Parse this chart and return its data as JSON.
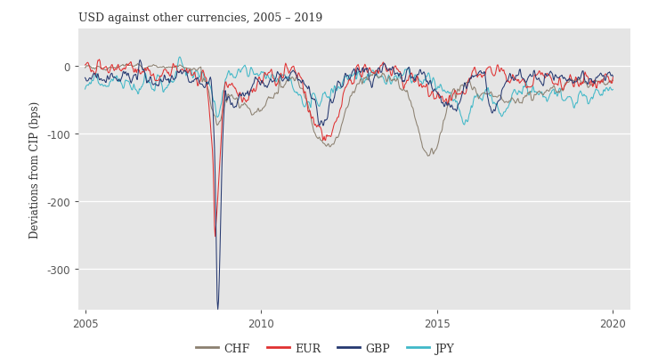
{
  "title": "USD against other currencies, 2005 – 2019",
  "ylabel": "Deviations from CIP (bps)",
  "xlim": [
    2004.8,
    2020.5
  ],
  "ylim": [
    -360,
    55
  ],
  "yticks": [
    0,
    -100,
    -200,
    -300
  ],
  "bg_color": "#e5e5e5",
  "fig_color": "#ffffff",
  "colors": {
    "CHF": "#8b8070",
    "EUR": "#e03030",
    "GBP": "#253870",
    "JPY": "#40b8c8"
  },
  "line_width": 0.75,
  "seed": 42
}
